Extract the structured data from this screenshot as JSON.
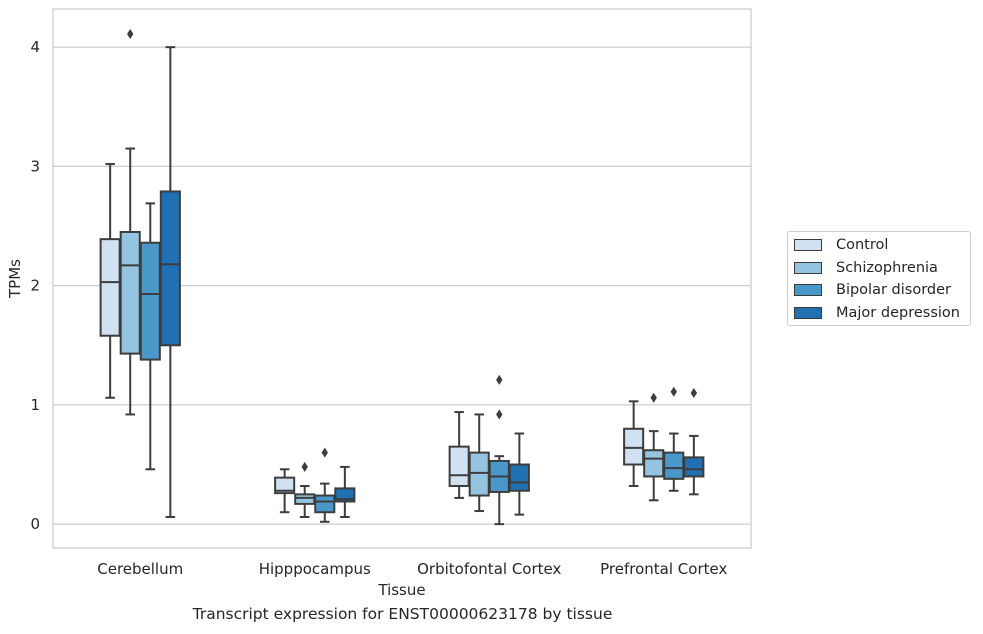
{
  "chart_data": {
    "type": "box",
    "title": "",
    "caption": "Transcript expression for ENST00000623178 by tissue",
    "xlabel": "Tissue",
    "ylabel": "TPMs",
    "categories": [
      "Cerebellum",
      "Hipppocampus",
      "Orbitofontal Cortex",
      "Prefrontal Cortex"
    ],
    "ylim": [
      -0.2,
      4.32
    ],
    "yticks": [
      0,
      1,
      2,
      3,
      4
    ],
    "grid": "horizontal",
    "legend_position": "right",
    "series": [
      {
        "name": "Control",
        "color": "#d0e1f2",
        "boxes": [
          {
            "whislo": 1.06,
            "q1": 1.58,
            "med": 2.03,
            "q3": 2.39,
            "whishi": 3.02,
            "fliers": []
          },
          {
            "whislo": 0.1,
            "q1": 0.26,
            "med": 0.28,
            "q3": 0.39,
            "whishi": 0.46,
            "fliers": []
          },
          {
            "whislo": 0.22,
            "q1": 0.32,
            "med": 0.41,
            "q3": 0.65,
            "whishi": 0.94,
            "fliers": []
          },
          {
            "whislo": 0.32,
            "q1": 0.5,
            "med": 0.64,
            "q3": 0.8,
            "whishi": 1.03,
            "fliers": []
          }
        ]
      },
      {
        "name": "Schizophrenia",
        "color": "#94c4df",
        "boxes": [
          {
            "whislo": 0.92,
            "q1": 1.43,
            "med": 2.17,
            "q3": 2.45,
            "whishi": 3.15,
            "fliers": [
              4.11
            ]
          },
          {
            "whislo": 0.06,
            "q1": 0.17,
            "med": 0.22,
            "q3": 0.25,
            "whishi": 0.32,
            "fliers": [
              0.48
            ]
          },
          {
            "whislo": 0.11,
            "q1": 0.24,
            "med": 0.43,
            "q3": 0.6,
            "whishi": 0.92,
            "fliers": []
          },
          {
            "whislo": 0.2,
            "q1": 0.4,
            "med": 0.55,
            "q3": 0.62,
            "whishi": 0.78,
            "fliers": [
              1.06
            ]
          }
        ]
      },
      {
        "name": "Bipolar disorder",
        "color": "#4a98c9",
        "boxes": [
          {
            "whislo": 0.46,
            "q1": 1.38,
            "med": 1.93,
            "q3": 2.36,
            "whishi": 2.69,
            "fliers": []
          },
          {
            "whislo": 0.02,
            "q1": 0.1,
            "med": 0.19,
            "q3": 0.24,
            "whishi": 0.34,
            "fliers": [
              0.6
            ]
          },
          {
            "whislo": 0.0,
            "q1": 0.27,
            "med": 0.4,
            "q3": 0.53,
            "whishi": 0.57,
            "fliers": [
              0.92,
              1.21
            ]
          },
          {
            "whislo": 0.28,
            "q1": 0.38,
            "med": 0.47,
            "q3": 0.6,
            "whishi": 0.76,
            "fliers": [
              1.11
            ]
          }
        ]
      },
      {
        "name": "Major depression",
        "color": "#2070b4",
        "boxes": [
          {
            "whislo": 0.06,
            "q1": 1.5,
            "med": 2.18,
            "q3": 2.79,
            "whishi": 4.0,
            "fliers": []
          },
          {
            "whislo": 0.06,
            "q1": 0.19,
            "med": 0.21,
            "q3": 0.3,
            "whishi": 0.48,
            "fliers": []
          },
          {
            "whislo": 0.08,
            "q1": 0.28,
            "med": 0.35,
            "q3": 0.5,
            "whishi": 0.76,
            "fliers": []
          },
          {
            "whislo": 0.25,
            "q1": 0.4,
            "med": 0.46,
            "q3": 0.56,
            "whishi": 0.74,
            "fliers": [
              1.1
            ]
          }
        ]
      }
    ]
  }
}
